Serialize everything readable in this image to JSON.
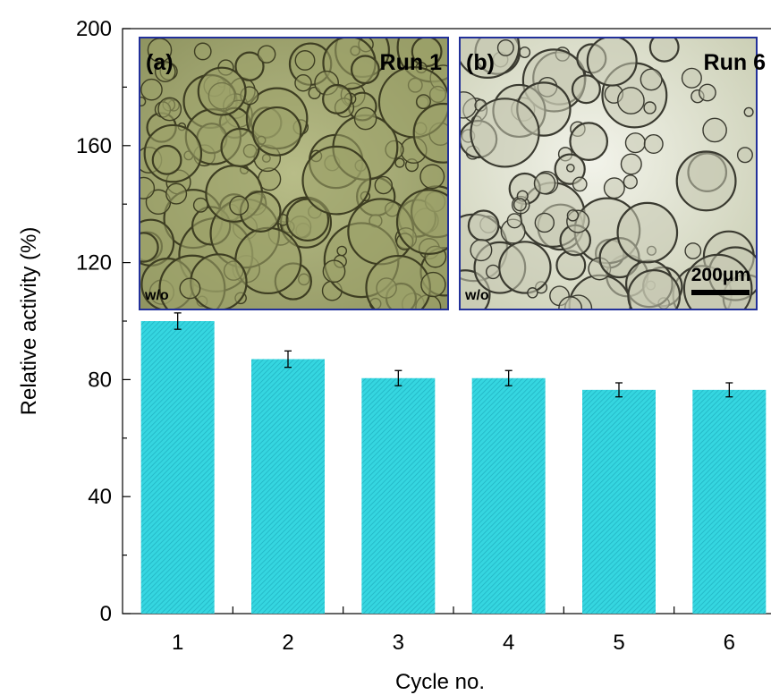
{
  "chart_data": {
    "type": "bar",
    "categories": [
      "1",
      "2",
      "3",
      "4",
      "5",
      "6"
    ],
    "values": [
      100,
      87,
      80.5,
      80.5,
      76.5,
      76.5
    ],
    "errors": [
      2.8,
      2.8,
      2.6,
      2.6,
      2.4,
      2.4
    ],
    "xlabel": "Cycle no.",
    "ylabel": "Relative activity (%)",
    "ylim": [
      0,
      200
    ],
    "yticks": [
      0,
      40,
      80,
      120,
      160,
      200
    ],
    "grid": false,
    "bar_color": "#35d6e0",
    "bar_hatch_color": "#1fb0c0",
    "insets": [
      {
        "panel": "(a)",
        "run": "Run 1",
        "note": "w/o",
        "tint": "#a9ae78"
      },
      {
        "panel": "(b)",
        "run": "Run 6",
        "note": "w/o",
        "tint": "#d8dcc6",
        "scale_bar": "200μm"
      }
    ],
    "inset_border_color": "#22309a"
  }
}
